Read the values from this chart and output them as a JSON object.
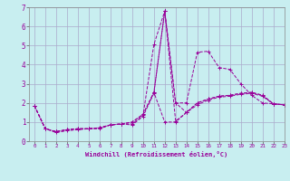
{
  "x": [
    0,
    1,
    2,
    3,
    4,
    5,
    6,
    7,
    8,
    9,
    10,
    11,
    12,
    13,
    14,
    15,
    16,
    17,
    18,
    19,
    20,
    21,
    22,
    23
  ],
  "series": [
    [
      1.85,
      0.65,
      0.45,
      0.55,
      0.6,
      0.65,
      0.65,
      0.85,
      0.9,
      0.9,
      1.35,
      5.05,
      6.8,
      2.0,
      2.0,
      4.65,
      4.7,
      3.85,
      3.75,
      3.0,
      2.4,
      2.0,
      1.95,
      1.9
    ],
    [
      1.85,
      0.65,
      0.5,
      0.6,
      0.65,
      0.65,
      0.7,
      0.85,
      0.9,
      1.0,
      1.4,
      2.55,
      1.0,
      1.0,
      1.5,
      2.0,
      2.2,
      2.35,
      2.4,
      2.5,
      2.55,
      2.4,
      1.95,
      1.9
    ],
    [
      1.85,
      0.65,
      0.5,
      0.6,
      0.65,
      0.65,
      0.7,
      0.85,
      0.9,
      1.0,
      1.4,
      2.55,
      6.8,
      1.05,
      1.5,
      2.0,
      2.2,
      2.35,
      2.4,
      2.5,
      2.55,
      2.4,
      1.95,
      1.9
    ],
    [
      1.85,
      0.65,
      0.5,
      0.6,
      0.65,
      0.65,
      0.7,
      0.85,
      0.9,
      0.85,
      1.3,
      2.5,
      6.8,
      2.0,
      1.5,
      1.9,
      2.15,
      2.3,
      2.35,
      2.45,
      2.5,
      2.35,
      1.95,
      1.9
    ]
  ],
  "line_color": "#990099",
  "bg_color": "#c8eef0",
  "grid_color": "#aaaacc",
  "xlabel": "Windchill (Refroidissement éolien,°C)",
  "ylim": [
    0,
    7
  ],
  "xlim": [
    -0.5,
    23
  ],
  "yticks": [
    0,
    1,
    2,
    3,
    4,
    5,
    6,
    7
  ],
  "xticks": [
    0,
    1,
    2,
    3,
    4,
    5,
    6,
    7,
    8,
    9,
    10,
    11,
    12,
    13,
    14,
    15,
    16,
    17,
    18,
    19,
    20,
    21,
    22,
    23
  ]
}
